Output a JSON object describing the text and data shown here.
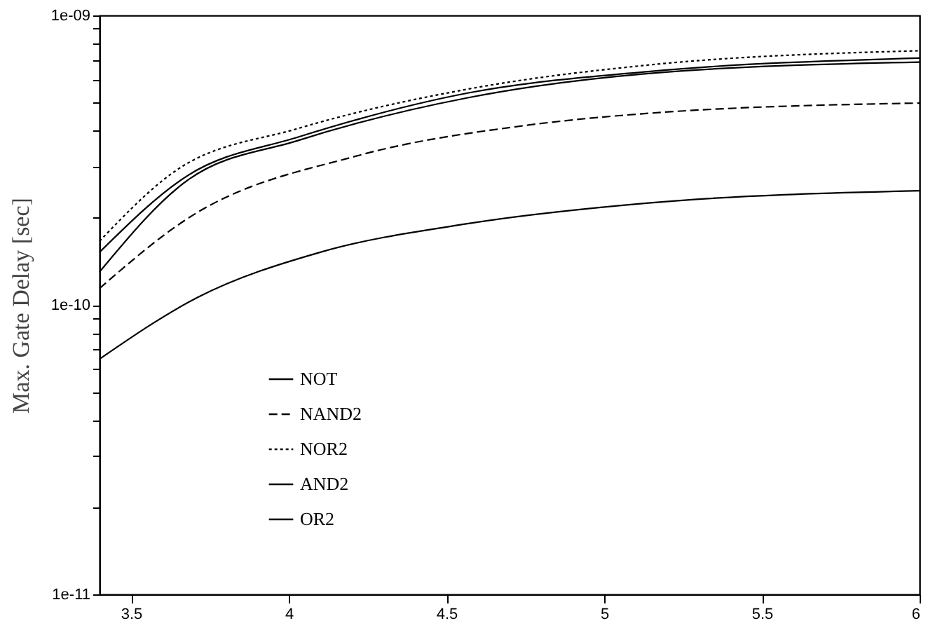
{
  "chart_data": {
    "type": "line",
    "ylabel": "Max. Gate Delay [sec]",
    "log": "y",
    "grid": false,
    "legend": "bottom left",
    "marker": "none",
    "xlim": [
      3.4,
      6
    ],
    "xticks": [
      3.5,
      4,
      4.5,
      5,
      5.5,
      6
    ],
    "ylim": [
      1e-11,
      1e-09
    ],
    "yticks": [
      {
        "value": 1e-11,
        "label": "1e-11"
      },
      {
        "value": 2e-11,
        "label": null
      },
      {
        "value": 3e-11,
        "label": null
      },
      {
        "value": 4e-11,
        "label": null
      },
      {
        "value": 5e-11,
        "label": null
      },
      {
        "value": 6e-11,
        "label": null
      },
      {
        "value": 7e-11,
        "label": null
      },
      {
        "value": 8e-11,
        "label": null
      },
      {
        "value": 9e-11,
        "label": null
      },
      {
        "value": 1e-10,
        "label": "1e-10"
      },
      {
        "value": 2e-10,
        "label": null
      },
      {
        "value": 3e-10,
        "label": null
      },
      {
        "value": 4e-10,
        "label": null
      },
      {
        "value": 5e-10,
        "label": null
      },
      {
        "value": 6e-10,
        "label": null
      },
      {
        "value": 7e-10,
        "label": null
      },
      {
        "value": 8e-10,
        "label": null
      },
      {
        "value": 9e-10,
        "label": null
      },
      {
        "value": 1e-09,
        "label": "1e-09"
      }
    ],
    "x": [
      3.4,
      3.71,
      4.1,
      4.57,
      5.14,
      6.0
    ],
    "series": [
      {
        "name": "NOT",
        "color": "#000000",
        "line_style": "solid",
        "values": [
          6.5e-11,
          1.06e-10,
          1.52e-10,
          1.91e-10,
          2.25e-10,
          2.48e-10
        ]
      },
      {
        "name": "NAND2",
        "color": "#000000",
        "line_style": "dashed",
        "x": [
          3.4,
          3.68,
          4.22,
          4.76,
          5.14,
          6.0
        ],
        "values": [
          1.14e-10,
          1.99e-10,
          3.28e-10,
          4.18e-10,
          4.59e-10,
          4.98e-10
        ]
      },
      {
        "name": "NOR2",
        "color": "#000000",
        "line_style": "dotted",
        "x": [
          3.4,
          3.64,
          4.03,
          4.57,
          5.14,
          6.0
        ],
        "values": [
          1.66e-10,
          2.9e-10,
          4.07e-10,
          5.57e-10,
          6.74e-10,
          7.55e-10
        ]
      },
      {
        "name": "AND2",
        "color": "#000000",
        "line_style": "solid",
        "x": [
          3.4,
          3.68,
          4.03,
          4.57,
          5.14,
          6.0
        ],
        "values": [
          1.52e-10,
          2.8e-10,
          3.8e-10,
          5.4e-10,
          6.4e-10,
          7.12e-10
        ]
      },
      {
        "name": "OR2",
        "color": "#000000",
        "line_style": "solid",
        "x": [
          3.4,
          3.68,
          4.03,
          4.57,
          5.14,
          6.0
        ],
        "values": [
          1.3e-10,
          2.7e-10,
          3.7e-10,
          5.2e-10,
          6.3e-10,
          6.9e-10
        ]
      }
    ]
  }
}
